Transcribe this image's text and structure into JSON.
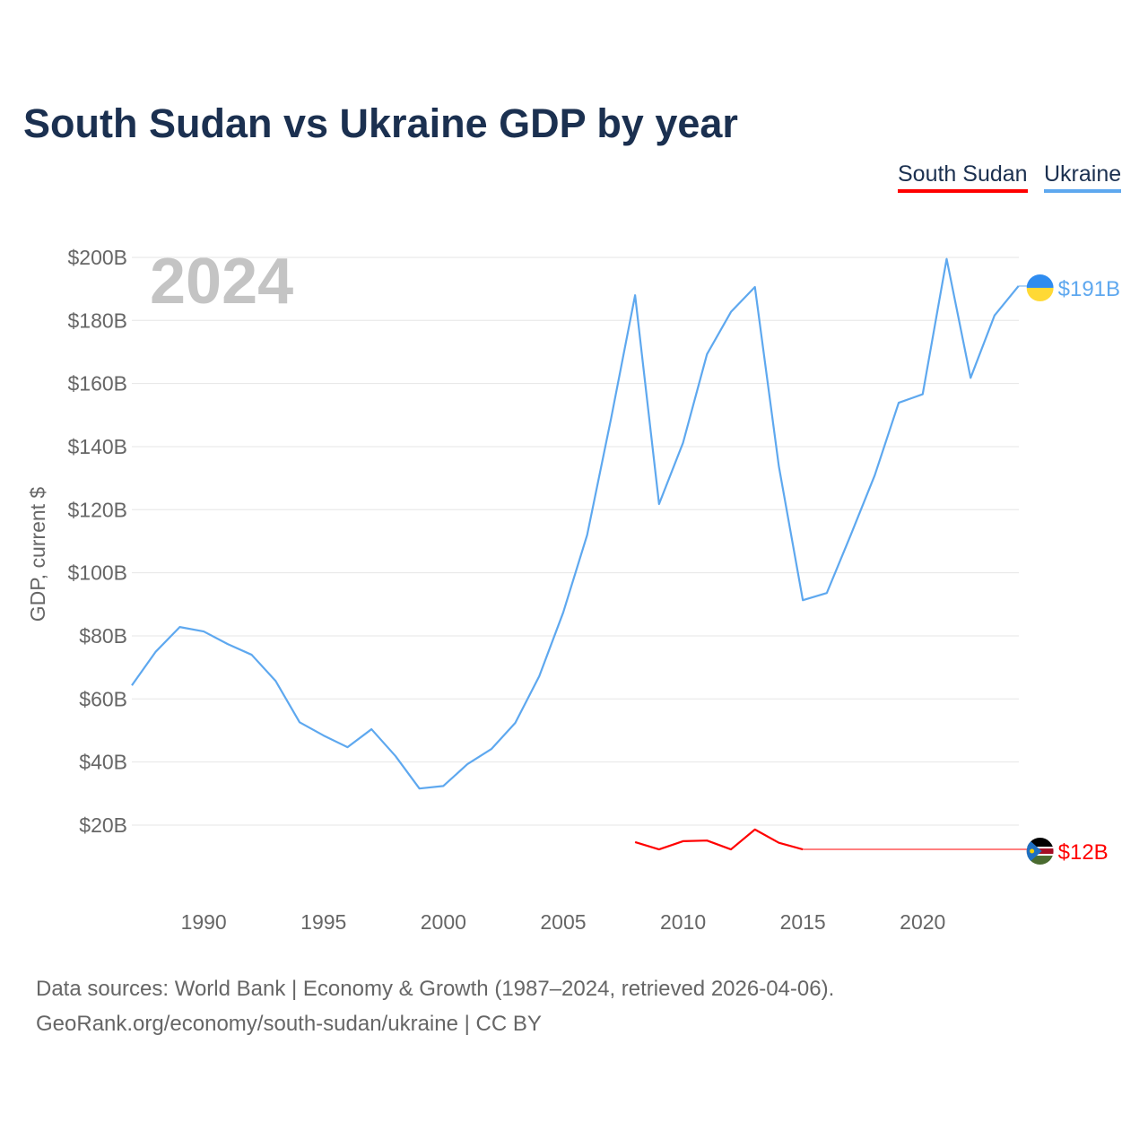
{
  "title": "South Sudan vs Ukraine GDP by year",
  "footer": {
    "line1": "Data sources: World Bank | Economy & Growth (1987–2024, retrieved 2026-04-06).",
    "line2": "GeoRank.org/economy/south-sudan/ukraine | CC BY"
  },
  "chart_data": {
    "type": "line",
    "title": "South Sudan vs Ukraine GDP by year",
    "ylabel": "GDP, current $",
    "xlabel": "",
    "year_watermark": "2024",
    "ylim": [
      0,
      200
    ],
    "xlim": [
      1987,
      2024
    ],
    "yticks": [
      {
        "v": 20,
        "label": "$20B"
      },
      {
        "v": 40,
        "label": "$40B"
      },
      {
        "v": 60,
        "label": "$60B"
      },
      {
        "v": 80,
        "label": "$80B"
      },
      {
        "v": 100,
        "label": "$100B"
      },
      {
        "v": 120,
        "label": "$120B"
      },
      {
        "v": 140,
        "label": "$140B"
      },
      {
        "v": 160,
        "label": "$160B"
      },
      {
        "v": 180,
        "label": "$180B"
      },
      {
        "v": 200,
        "label": "$200B"
      }
    ],
    "xticks": [
      {
        "v": 1990,
        "label": "1990"
      },
      {
        "v": 1995,
        "label": "1995"
      },
      {
        "v": 2000,
        "label": "2000"
      },
      {
        "v": 2005,
        "label": "2005"
      },
      {
        "v": 2010,
        "label": "2010"
      },
      {
        "v": 2015,
        "label": "2015"
      },
      {
        "v": 2020,
        "label": "2020"
      }
    ],
    "grid": true,
    "legend_position": "top-right",
    "series": [
      {
        "name": "South Sudan",
        "color": "#ff0000",
        "end_label": "$12B",
        "flag": "south-sudan",
        "x": [
          2008,
          2009,
          2010,
          2011,
          2012,
          2013,
          2014,
          2015
        ],
        "values": [
          14.6,
          12.3,
          14.9,
          15.1,
          12.3,
          18.6,
          14.4,
          12.3
        ]
      },
      {
        "name": "Ukraine",
        "color": "#5ea8ef",
        "end_label": "$191B",
        "flag": "ukraine",
        "x": [
          1987,
          1988,
          1989,
          1990,
          1991,
          1992,
          1993,
          1994,
          1995,
          1996,
          1997,
          1998,
          1999,
          2000,
          2001,
          2002,
          2003,
          2004,
          2005,
          2006,
          2007,
          2008,
          2009,
          2010,
          2011,
          2012,
          2013,
          2014,
          2015,
          2016,
          2017,
          2018,
          2019,
          2020,
          2021,
          2022,
          2023,
          2024
        ],
        "values": [
          64.3,
          75,
          82.8,
          81.4,
          77.4,
          74,
          65.7,
          52.6,
          48.4,
          44.7,
          50.4,
          41.9,
          31.6,
          32.4,
          39.3,
          44.1,
          52.4,
          67.2,
          87.4,
          112,
          149,
          188,
          121.8,
          141.2,
          169.3,
          182.7,
          190.6,
          133.7,
          91.3,
          93.6,
          112,
          130.9,
          153.9,
          156.6,
          199.5,
          161.8,
          181.6,
          190.9
        ]
      }
    ]
  }
}
